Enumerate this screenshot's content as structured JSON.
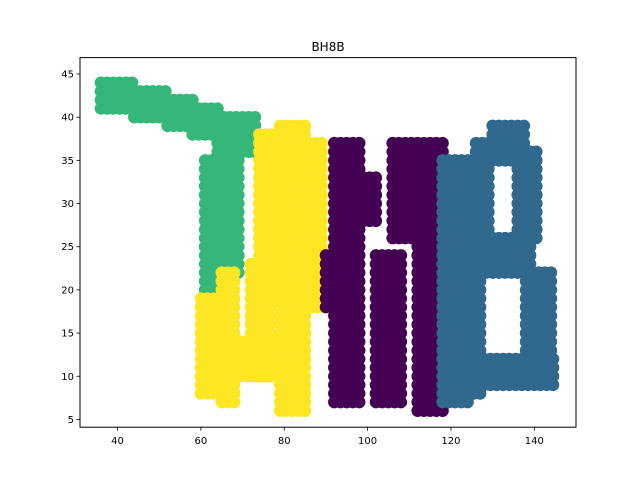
{
  "chart_data": {
    "type": "scatter",
    "title": "BH8B",
    "xlabel": "",
    "ylabel": "",
    "xlim": [
      31,
      150
    ],
    "ylim": [
      4.1,
      46.9
    ],
    "xticks": [
      40,
      60,
      80,
      100,
      120,
      140
    ],
    "yticks": [
      5,
      10,
      15,
      20,
      25,
      30,
      35,
      40,
      45
    ],
    "grid": false,
    "legend": "none",
    "series": [
      {
        "color": "#35b779",
        "strokes": [
          {
            "kind": "band",
            "cx0": 36,
            "cx1": 44,
            "ylo": 41,
            "yhi": 44
          },
          {
            "kind": "band",
            "cx0": 44,
            "cx1": 52,
            "ylo": 40,
            "yhi": 43
          },
          {
            "kind": "band",
            "cx0": 52,
            "cx1": 58,
            "ylo": 39,
            "yhi": 42
          },
          {
            "kind": "band",
            "cx0": 58,
            "cx1": 64,
            "ylo": 38,
            "yhi": 41
          },
          {
            "kind": "band",
            "cx0": 64,
            "cx1": 74,
            "ylo": 36,
            "yhi": 40
          },
          {
            "kind": "col",
            "y0": 19,
            "y1": 35,
            "cx0": 61,
            "cx1": 66
          },
          {
            "kind": "col",
            "y0": 22,
            "y1": 36,
            "cx0": 66,
            "cx1": 70
          }
        ]
      },
      {
        "color": "#fde725",
        "strokes": [
          {
            "kind": "col",
            "y0": 8,
            "y1": 19,
            "cx0": 60,
            "cx1": 65
          },
          {
            "kind": "col",
            "y0": 7,
            "y1": 22,
            "cx0": 65,
            "cx1": 68
          },
          {
            "kind": "col",
            "y0": 10,
            "y1": 14,
            "cx0": 68,
            "cx1": 78
          },
          {
            "kind": "col",
            "y0": 10,
            "y1": 23,
            "cx0": 72,
            "cx1": 77
          },
          {
            "kind": "col",
            "y0": 19,
            "y1": 38,
            "cx0": 74,
            "cx1": 79
          },
          {
            "kind": "col",
            "y0": 6,
            "y1": 39,
            "cx0": 79,
            "cx1": 85
          },
          {
            "kind": "col",
            "y0": 18,
            "y1": 24,
            "cx0": 85,
            "cx1": 91
          },
          {
            "kind": "col",
            "y0": 19,
            "y1": 37,
            "cx0": 86,
            "cx1": 90
          }
        ]
      },
      {
        "color": "#440154",
        "strokes": [
          {
            "kind": "col",
            "y0": 7,
            "y1": 37,
            "cx0": 92,
            "cx1": 99
          },
          {
            "kind": "col",
            "y0": 18,
            "y1": 24,
            "cx0": 90,
            "cx1": 93
          },
          {
            "kind": "col",
            "y0": 28,
            "y1": 33,
            "cx0": 99,
            "cx1": 103
          },
          {
            "kind": "col",
            "y0": 7,
            "y1": 24,
            "cx0": 102,
            "cx1": 108
          },
          {
            "kind": "col",
            "y0": 26,
            "y1": 37,
            "cx0": 106,
            "cx1": 112
          },
          {
            "kind": "col",
            "y0": 6,
            "y1": 37,
            "cx0": 112,
            "cx1": 118
          }
        ]
      },
      {
        "color": "#31688e",
        "strokes": [
          {
            "kind": "col",
            "y0": 7,
            "y1": 35,
            "cx0": 118,
            "cx1": 124
          },
          {
            "kind": "col",
            "y0": 8,
            "y1": 22,
            "cx0": 124,
            "cx1": 128
          },
          {
            "kind": "col",
            "y0": 25,
            "y1": 37,
            "cx0": 126,
            "cx1": 130
          },
          {
            "kind": "col",
            "y0": 9,
            "y1": 12,
            "cx0": 128,
            "cx1": 145
          },
          {
            "kind": "col",
            "y0": 22,
            "y1": 26,
            "cx0": 124,
            "cx1": 140
          },
          {
            "kind": "col",
            "y0": 35,
            "y1": 39,
            "cx0": 130,
            "cx1": 138
          },
          {
            "kind": "col",
            "y0": 26,
            "y1": 36,
            "cx0": 136,
            "cx1": 141
          },
          {
            "kind": "col",
            "y0": 12,
            "y1": 22,
            "cx0": 138,
            "cx1": 145
          }
        ]
      }
    ]
  }
}
